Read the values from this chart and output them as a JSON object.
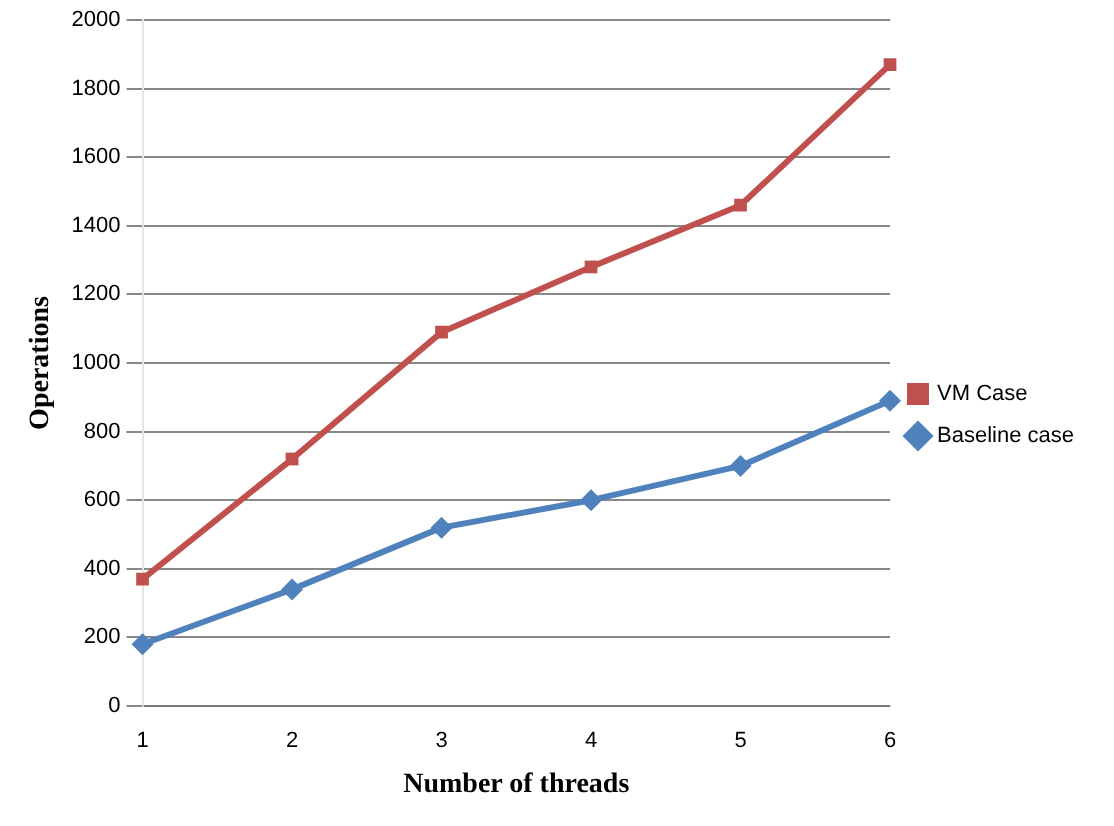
{
  "chart_data": {
    "type": "line",
    "xlabel": "Number of threads",
    "ylabel": "Operations",
    "categories": [
      "1",
      "2",
      "3",
      "4",
      "5",
      "6"
    ],
    "series": [
      {
        "name": "VM Case",
        "color": "#c0504d",
        "marker": "square",
        "values": [
          370,
          720,
          1090,
          1280,
          1460,
          1870
        ]
      },
      {
        "name": "Baseline case",
        "color": "#4f81bd",
        "marker": "diamond",
        "values": [
          180,
          340,
          520,
          600,
          700,
          890
        ]
      }
    ],
    "ylim": [
      0,
      2000
    ],
    "yticks": [
      0,
      200,
      400,
      600,
      800,
      1000,
      1200,
      1400,
      1600,
      1800,
      2000
    ],
    "grid": "y",
    "legend": "right",
    "line_style": "solid"
  }
}
